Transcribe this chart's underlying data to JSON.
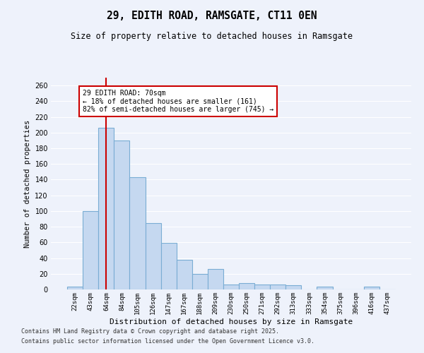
{
  "title": "29, EDITH ROAD, RAMSGATE, CT11 0EN",
  "subtitle": "Size of property relative to detached houses in Ramsgate",
  "xlabel": "Distribution of detached houses by size in Ramsgate",
  "ylabel": "Number of detached properties",
  "categories": [
    "22sqm",
    "43sqm",
    "64sqm",
    "84sqm",
    "105sqm",
    "126sqm",
    "147sqm",
    "167sqm",
    "188sqm",
    "209sqm",
    "230sqm",
    "250sqm",
    "271sqm",
    "292sqm",
    "313sqm",
    "333sqm",
    "354sqm",
    "375sqm",
    "396sqm",
    "416sqm",
    "437sqm"
  ],
  "values": [
    4,
    100,
    206,
    190,
    143,
    85,
    59,
    38,
    20,
    26,
    6,
    8,
    6,
    6,
    5,
    0,
    4,
    0,
    0,
    4,
    0
  ],
  "bar_color": "#c5d8f0",
  "bar_edge_color": "#7aadd4",
  "redline_index": 2,
  "ylim": [
    0,
    270
  ],
  "yticks": [
    0,
    20,
    40,
    60,
    80,
    100,
    120,
    140,
    160,
    180,
    200,
    220,
    240,
    260
  ],
  "annotation_title": "29 EDITH ROAD: 70sqm",
  "annotation_line1": "← 18% of detached houses are smaller (161)",
  "annotation_line2": "82% of semi-detached houses are larger (745) →",
  "annotation_box_color": "#ffffff",
  "annotation_box_edge": "#cc0000",
  "redline_color": "#cc0000",
  "footer1": "Contains HM Land Registry data © Crown copyright and database right 2025.",
  "footer2": "Contains public sector information licensed under the Open Government Licence v3.0.",
  "background_color": "#eef2fb",
  "grid_color": "#ffffff"
}
